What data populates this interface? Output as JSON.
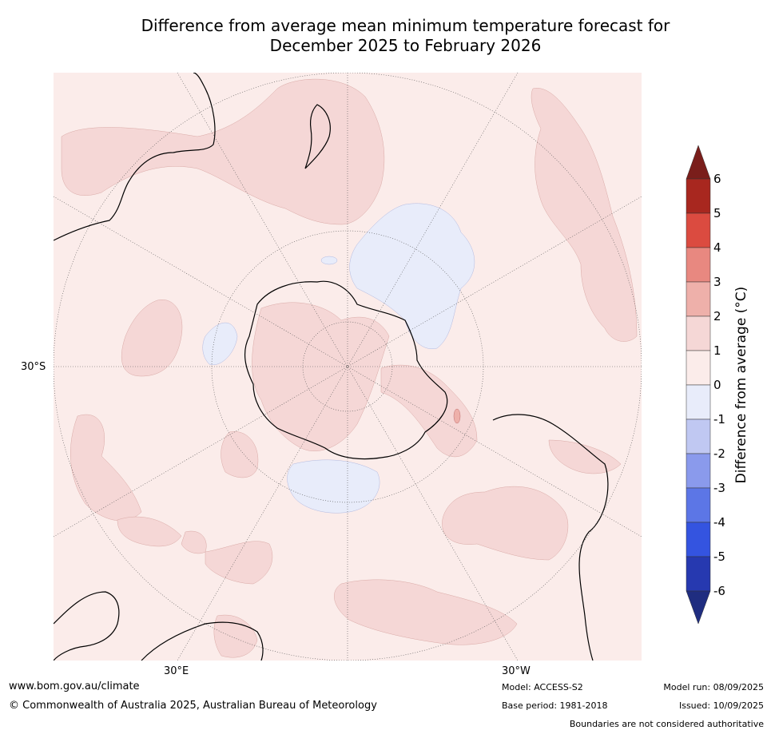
{
  "title": {
    "line1": "Difference from average mean minimum temperature forecast for",
    "line2": "December 2025 to February 2026"
  },
  "map": {
    "projection": "south-polar stereographic",
    "grid_labels": {
      "lat": "30°S",
      "lon_left": "30°E",
      "lon_right": "30°W"
    }
  },
  "legend": {
    "title": "Difference from average (°C)",
    "ticks": [
      "6",
      "5",
      "4",
      "3",
      "2",
      "1",
      "0",
      "-1",
      "-2",
      "-3",
      "-4",
      "-5",
      "-6"
    ],
    "colors": {
      "above_6": "#7a1e1b",
      "5_to_6": "#a8271f",
      "4_to_5": "#db4b40",
      "3_to_4": "#e88880",
      "2_to_3": "#eeb0aa",
      "1_to_2": "#f5d7d6",
      "0_to_1": "#fbecea",
      "m1_to_0": "#e8ecfa",
      "m2_to_m1": "#c0c8f2",
      "m3_to_m2": "#8a9aec",
      "m4_to_m3": "#5c76e6",
      "m5_to_m4": "#3454e0",
      "m6_to_m5": "#2639b0",
      "below_m6": "#1f2d80"
    }
  },
  "footer": {
    "website": "www.bom.gov.au/climate",
    "copyright": "© Commonwealth of Australia 2025, Australian Bureau of Meteorology",
    "model": "Model: ACCESS-S2",
    "base_period": "Base period: 1981-2018",
    "model_run": "Model run: 08/09/2025",
    "issued": "Issued: 10/09/2025",
    "disclaimer": "Boundaries are not considered authoritative"
  }
}
